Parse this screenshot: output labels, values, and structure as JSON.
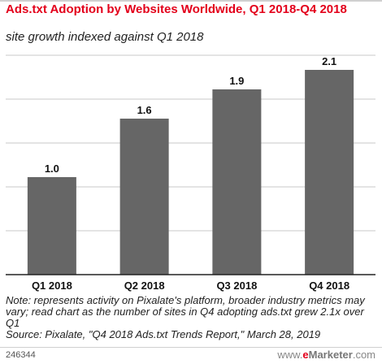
{
  "chart_data": {
    "type": "bar",
    "title": "Ads.txt Adoption by Websites Worldwide, Q1 2018-Q4 2018",
    "subtitle": "site growth indexed against Q1 2018",
    "categories": [
      "Q1 2018",
      "Q2 2018",
      "Q3 2018",
      "Q4 2018"
    ],
    "values": [
      1.0,
      1.6,
      1.9,
      2.1
    ],
    "value_labels": [
      "1.0",
      "1.6",
      "1.9",
      "2.1"
    ],
    "ylim": [
      0,
      2.25
    ],
    "grid": true,
    "bar_color": "#666666"
  },
  "notes": {
    "note": "Note: represents activity on Pixalate's platform, broader industry metrics may vary; read chart as the number of sites in Q4 adopting ads.txt grew 2.1x over Q1",
    "source": "Source: Pixalate, \"Q4 2018 Ads.txt Trends Report,\" March 28, 2019"
  },
  "footer": {
    "chart_id": "246344",
    "brand_prefix": "www.",
    "brand_e": "e",
    "brand_rest": "Marketer",
    "brand_suffix": ".com"
  },
  "colors": {
    "title": "#e3001b",
    "bar": "#666666",
    "grid": "#c8c8c8"
  }
}
